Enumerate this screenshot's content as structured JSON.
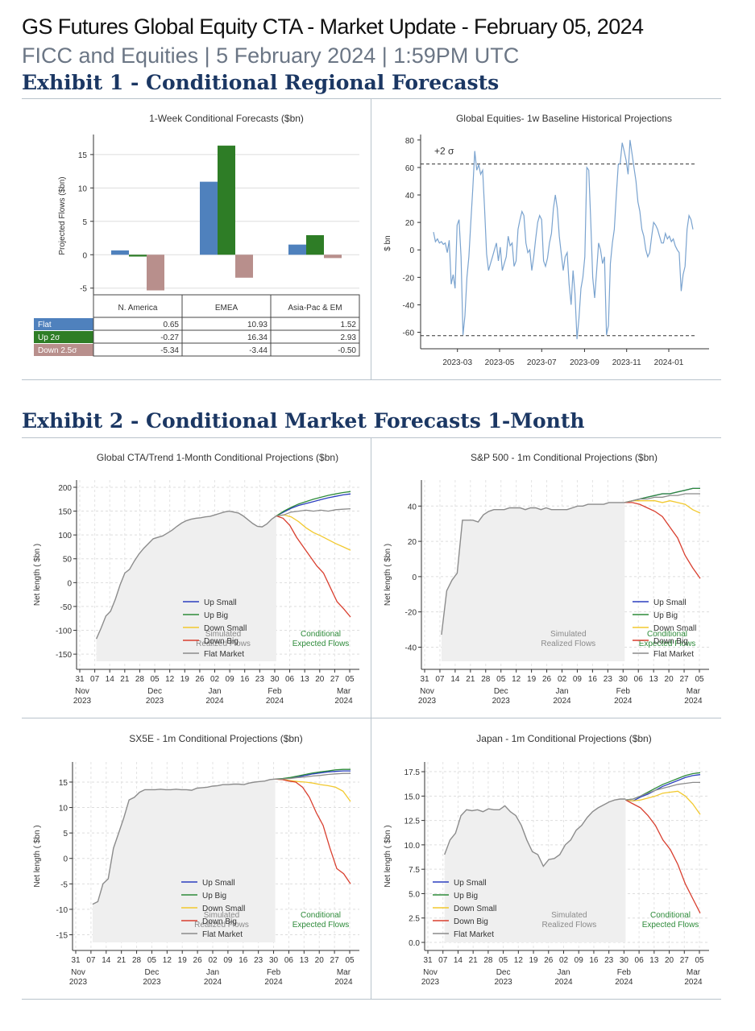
{
  "header": {
    "title": "GS Futures Global Equity CTA - Market Update - February 05, 2024",
    "subtitle": "FICC and Equities | 5 February 2024 | 1:59PM UTC"
  },
  "exhibit1": {
    "title": "Exhibit 1 - Conditional Regional Forecasts"
  },
  "exhibit2": {
    "title": "Exhibit 2 - Conditional Market Forecasts 1-Month"
  },
  "colors": {
    "flat": "#4f81bd",
    "up": "#2e7d26",
    "down": "#b88f8c",
    "line_blue": "#2b3fbf",
    "line_green": "#2e8b3a",
    "line_yellow": "#f2c92f",
    "line_red": "#d93f2f",
    "line_gray": "#8c8c8c",
    "hist": "#7aa3cf"
  },
  "chart_data": [
    {
      "type": "bar",
      "title": "1-Week Conditional Forecasts ($bn)",
      "ylabel": "Projected Flows ($bn)",
      "ylim": [
        -6,
        18
      ],
      "yticks": [
        -5,
        0,
        5,
        10,
        15
      ],
      "categories": [
        "N. America",
        "EMEA",
        "Asia-Pac & EM"
      ],
      "series": [
        {
          "name": "Flat",
          "values": [
            0.65,
            10.93,
            1.52
          ],
          "labels": [
            "0.65",
            "10.93",
            "1.52"
          ]
        },
        {
          "name": "Up 2σ",
          "values": [
            -0.27,
            16.34,
            2.93
          ],
          "labels": [
            "-0.27",
            "16.34",
            "2.93"
          ]
        },
        {
          "name": "Down 2.5σ",
          "values": [
            -5.34,
            -3.44,
            -0.5
          ],
          "labels": [
            "-5.34",
            "-3.44",
            "-0.50"
          ]
        }
      ]
    },
    {
      "type": "line",
      "title": "Global Equities- 1w Baseline Historical Projections",
      "ylabel": "$ bn",
      "ylim": [
        -72,
        84
      ],
      "yticks": [
        -60,
        -40,
        -20,
        0,
        20,
        40,
        60,
        80
      ],
      "xticks": [
        "2023-03",
        "2023-05",
        "2023-07",
        "2023-09",
        "2023-11",
        "2024-01"
      ],
      "band": {
        "upper": 62.5,
        "lower": -62.5,
        "label": "+2 σ"
      },
      "x_start": "2023-01-23",
      "x_end": "2024-02-05",
      "values": [
        13,
        6,
        8,
        5,
        6,
        4,
        5,
        -2,
        7,
        -25,
        -18,
        -28,
        18,
        22,
        -5,
        -62,
        -48,
        -20,
        -5,
        20,
        45,
        72,
        58,
        62,
        55,
        58,
        30,
        -3,
        -15,
        -10,
        -5,
        0,
        5,
        -8,
        2,
        -15,
        -10,
        -5,
        10,
        3,
        5,
        -12,
        -8,
        15,
        22,
        28,
        25,
        5,
        -2,
        0,
        -15,
        -5,
        8,
        20,
        25,
        22,
        -8,
        -12,
        -6,
        5,
        12,
        30,
        40,
        30,
        10,
        -3,
        -15,
        -5,
        -2,
        -25,
        -40,
        -15,
        -32,
        -65,
        -50,
        -28,
        -20,
        -5,
        60,
        58,
        20,
        -20,
        -35,
        -15,
        5,
        0,
        -10,
        -5,
        -62,
        -55,
        -10,
        5,
        15,
        40,
        62,
        63,
        78,
        72,
        65,
        55,
        80,
        70,
        60,
        50,
        35,
        28,
        15,
        10,
        0,
        -5,
        -2,
        10,
        20,
        18,
        15,
        10,
        5,
        5,
        12,
        8,
        10,
        6,
        8,
        3,
        0,
        -2,
        -30,
        -18,
        -12,
        15,
        25,
        22,
        15
      ]
    },
    {
      "type": "line",
      "title": "Global CTA/Trend 1-Month Conditional Projections ($bn)",
      "ylabel": "Net length ( $bn )",
      "ylim": [
        -165,
        205
      ],
      "yticks": [
        -150,
        -100,
        -50,
        0,
        50,
        100,
        150,
        200
      ],
      "xticks": [
        "31",
        "07",
        "14",
        "21",
        "28",
        "05",
        "12",
        "19",
        "26",
        "02",
        "09",
        "16",
        "23",
        "30",
        "06",
        "13",
        "20",
        "27",
        "05"
      ],
      "month_labels": [
        {
          "day": 0,
          "m": "Nov",
          "y": "2023"
        },
        {
          "day": 5,
          "m": "Dec",
          "y": "2023"
        },
        {
          "day": 9,
          "m": "Jan",
          "y": "2024"
        },
        {
          "day": 13,
          "m": "Feb",
          "y": "2024"
        },
        {
          "day": 17.6,
          "m": "Mar",
          "y": "2024"
        }
      ],
      "region_labels": {
        "left": "Simulated\nRealized Flows",
        "right": "Conditional\nExpected Flows"
      },
      "legend": [
        "Up Small",
        "Up Big",
        "Down Small",
        "Down Big",
        "Flat Market"
      ],
      "history": [
        -118,
        -95,
        -70,
        -60,
        -35,
        -5,
        20,
        28,
        45,
        60,
        72,
        82,
        92,
        95,
        98,
        104,
        110,
        118,
        125,
        130,
        133,
        135,
        136,
        138,
        139,
        142,
        145,
        148,
        150,
        148,
        146,
        140,
        132,
        124,
        118,
        117,
        123,
        133,
        140
      ],
      "projections": {
        "Up Small": [
          140,
          148,
          156,
          162,
          166,
          170,
          174,
          178,
          181,
          184,
          186
        ],
        "Up Big": [
          140,
          150,
          158,
          165,
          170,
          175,
          179,
          183,
          186,
          189,
          191
        ],
        "Down Small": [
          140,
          142,
          138,
          128,
          115,
          105,
          98,
          90,
          82,
          75,
          68
        ],
        "Down Big": [
          140,
          135,
          120,
          95,
          75,
          55,
          35,
          20,
          -10,
          -40,
          -55,
          -72
        ],
        "Flat Market": [
          140,
          142,
          148,
          150,
          152,
          150,
          152,
          150,
          153,
          154,
          155
        ]
      }
    },
    {
      "type": "line",
      "title": "S&P 500 - 1m Conditional Projections ($bn)",
      "ylabel": "Net length ( $bn )",
      "ylim": [
        -48,
        52
      ],
      "yticks": [
        -40,
        -20,
        0,
        20,
        40
      ],
      "xticks": [
        "31",
        "07",
        "14",
        "21",
        "28",
        "05",
        "12",
        "19",
        "26",
        "02",
        "09",
        "16",
        "23",
        "30",
        "06",
        "13",
        "20",
        "27",
        "05"
      ],
      "month_labels": [
        {
          "day": 0,
          "m": "Nov",
          "y": "2023"
        },
        {
          "day": 5,
          "m": "Dec",
          "y": "2023"
        },
        {
          "day": 9,
          "m": "Jan",
          "y": "2024"
        },
        {
          "day": 13,
          "m": "Feb",
          "y": "2024"
        },
        {
          "day": 17.6,
          "m": "Mar",
          "y": "2024"
        }
      ],
      "region_labels": {
        "left": "Simulated\nRealized Flows",
        "right": "Conditional\nExpected Flows"
      },
      "legend": [
        "Up Small",
        "Up Big",
        "Down Small",
        "Down Big",
        "Flat Market"
      ],
      "history": [
        -33,
        -8,
        -2,
        2,
        32,
        32,
        32,
        31,
        35,
        37,
        38,
        38,
        38,
        39,
        39,
        39,
        38,
        39,
        39,
        38,
        39,
        38,
        38,
        38,
        38,
        39,
        40,
        40,
        41,
        41,
        41,
        41,
        42,
        42,
        42,
        42
      ],
      "projections": {
        "Up Small": [
          42,
          43,
          44,
          45,
          46,
          47,
          47,
          48,
          49,
          50,
          50
        ],
        "Up Big": [
          42,
          43,
          44,
          45,
          46,
          47,
          47,
          48,
          49,
          50,
          50
        ],
        "Down Small": [
          42,
          43,
          43,
          43,
          43,
          42,
          43,
          42,
          41,
          38,
          36
        ],
        "Down Big": [
          42,
          42,
          41,
          39,
          37,
          34,
          28,
          22,
          12,
          5,
          -1
        ],
        "Flat Market": [
          42,
          43,
          44,
          44,
          45,
          45,
          46,
          46,
          47,
          47,
          47
        ]
      }
    },
    {
      "type": "line",
      "title": "SX5E - 1m Conditional Projections ($bn)",
      "ylabel": "Net length ( $bn )",
      "ylim": [
        -16.5,
        18
      ],
      "yticks": [
        -15,
        -10,
        -5,
        0,
        5,
        10,
        15
      ],
      "xticks": [
        "31",
        "07",
        "14",
        "21",
        "28",
        "05",
        "12",
        "19",
        "26",
        "02",
        "09",
        "16",
        "23",
        "30",
        "06",
        "13",
        "20",
        "27",
        "05"
      ],
      "month_labels": [
        {
          "day": 0,
          "m": "Nov",
          "y": "2023"
        },
        {
          "day": 5,
          "m": "Dec",
          "y": "2023"
        },
        {
          "day": 9,
          "m": "Jan",
          "y": "2024"
        },
        {
          "day": 13,
          "m": "Feb",
          "y": "2024"
        },
        {
          "day": 17.6,
          "m": "Mar",
          "y": "2024"
        }
      ],
      "region_labels": {
        "left": "Simulated\nRealized Flows",
        "right": "Conditional\nExpected Flows"
      },
      "legend": [
        "Up Small",
        "Up Big",
        "Down Small",
        "Down Big",
        "Flat Market"
      ],
      "history": [
        -9,
        -8.5,
        -5,
        -4,
        2,
        5,
        8,
        11.5,
        12,
        13,
        13.5,
        13.5,
        13.5,
        13.6,
        13.5,
        13.5,
        13.6,
        13.5,
        13.5,
        13.4,
        13.8,
        13.9,
        14.0,
        14.2,
        14.3,
        14.5,
        14.5,
        14.6,
        14.6,
        14.5,
        14.8,
        15.0,
        15.1,
        15.2,
        15.5,
        15.6
      ],
      "projections": {
        "Up Small": [
          15.6,
          15.6,
          15.8,
          16.0,
          16.3,
          16.6,
          16.8,
          17.0,
          17.1,
          17.2,
          17.2
        ],
        "Up Big": [
          15.6,
          15.7,
          15.9,
          16.2,
          16.5,
          16.8,
          17.0,
          17.2,
          17.4,
          17.5,
          17.5
        ],
        "Down Small": [
          15.6,
          15.5,
          15.3,
          15.1,
          15.0,
          14.8,
          14.5,
          14.3,
          14.0,
          13.2,
          11.2
        ],
        "Down Big": [
          15.6,
          15.5,
          15.2,
          15.0,
          14.0,
          12.0,
          9.0,
          6.5,
          2.0,
          -2.0,
          -3.0,
          -5.0
        ],
        "Flat Market": [
          15.6,
          15.6,
          15.7,
          15.9,
          16.0,
          16.2,
          16.3,
          16.5,
          16.6,
          16.7,
          16.7
        ]
      }
    },
    {
      "type": "line",
      "title": "Japan - 1m Conditional Projections ($bn)",
      "ylabel": "Net length ( $bn )",
      "ylim": [
        0,
        18
      ],
      "yticks": [
        0.0,
        2.5,
        5.0,
        7.5,
        10.0,
        12.5,
        15.0,
        17.5
      ],
      "xticks": [
        "31",
        "07",
        "14",
        "21",
        "28",
        "05",
        "12",
        "19",
        "26",
        "02",
        "09",
        "16",
        "23",
        "30",
        "06",
        "13",
        "20",
        "27",
        "05"
      ],
      "month_labels": [
        {
          "day": 0,
          "m": "Nov",
          "y": "2023"
        },
        {
          "day": 5,
          "m": "Dec",
          "y": "2023"
        },
        {
          "day": 9,
          "m": "Jan",
          "y": "2024"
        },
        {
          "day": 13,
          "m": "Feb",
          "y": "2024"
        },
        {
          "day": 17.6,
          "m": "Mar",
          "y": "2024"
        }
      ],
      "region_labels": {
        "left": "Simulated\nRealized Flows",
        "right": "Conditional\nExpected Flows"
      },
      "legend": [
        "Up Small",
        "Up Big",
        "Down Small",
        "Down Big",
        "Flat Market"
      ],
      "history": [
        9.0,
        10.5,
        11.2,
        13.0,
        13.6,
        13.5,
        13.6,
        13.4,
        13.7,
        13.6,
        13.6,
        14.0,
        13.4,
        13.0,
        12.0,
        10.5,
        9.3,
        9.0,
        7.8,
        8.5,
        8.6,
        9.0,
        10.0,
        10.5,
        11.5,
        12.0,
        12.8,
        13.4,
        13.8,
        14.1,
        14.4,
        14.6,
        14.7,
        14.7
      ],
      "projections": {
        "Up Small": [
          14.6,
          14.5,
          14.9,
          15.2,
          15.6,
          16.0,
          16.3,
          16.6,
          16.9,
          17.1,
          17.2
        ],
        "Up Big": [
          14.6,
          14.7,
          15.0,
          15.4,
          15.8,
          16.2,
          16.5,
          16.8,
          17.1,
          17.3,
          17.4
        ],
        "Down Small": [
          14.6,
          14.5,
          14.6,
          14.8,
          15.0,
          15.3,
          15.4,
          15.5,
          15.0,
          14.2,
          13.1
        ],
        "Down Big": [
          14.6,
          14.2,
          13.8,
          13.0,
          12.0,
          10.5,
          9.5,
          8.0,
          6.0,
          4.5,
          3.0
        ],
        "Flat Market": [
          14.6,
          14.7,
          15.0,
          15.3,
          15.6,
          15.8,
          16.0,
          16.2,
          16.3,
          16.4,
          16.4
        ]
      }
    }
  ]
}
